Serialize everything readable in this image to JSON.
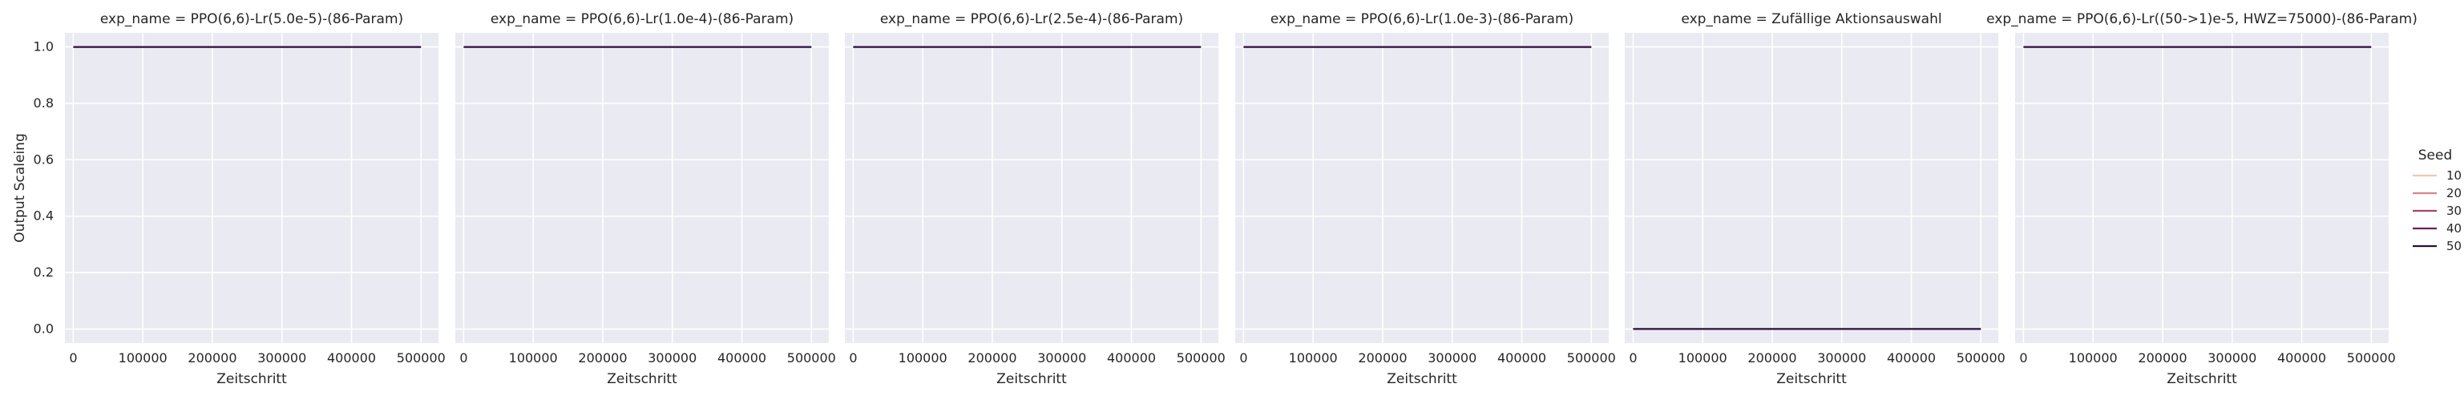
{
  "chart_data": {
    "type": "line",
    "facet_variable": "exp_name",
    "title_template": "exp_name = {name}",
    "xlabel": "Zeitschritt",
    "ylabel": "Output Scaleing",
    "xlim": [
      -12000,
      525000
    ],
    "ylim": [
      -0.05,
      1.05
    ],
    "xticks": [
      0,
      100000,
      200000,
      300000,
      400000,
      500000
    ],
    "xtick_labels": [
      "0",
      "100000",
      "200000",
      "300000",
      "400000",
      "500000"
    ],
    "yticks": [
      0.0,
      0.2,
      0.4,
      0.6,
      0.8,
      1.0
    ],
    "ytick_labels": [
      "0.0",
      "0.2",
      "0.4",
      "0.6",
      "0.8",
      "1.0"
    ],
    "grid": true,
    "legend": {
      "title": "Seed",
      "placement": "right",
      "entries": [
        {
          "label": "10",
          "color": "#f0c8b8"
        },
        {
          "label": "20",
          "color": "#d9838c"
        },
        {
          "label": "30",
          "color": "#a8426d"
        },
        {
          "label": "40",
          "color": "#6b1f5e"
        },
        {
          "label": "50",
          "color": "#2a0f3c"
        }
      ]
    },
    "panels": [
      {
        "name": "PPO(6,6)-Lr(5.0e-5)-(86-Param)",
        "series": [
          {
            "seed": "50",
            "x": [
              0,
              500000
            ],
            "y": [
              1.0,
              1.0
            ]
          }
        ]
      },
      {
        "name": "PPO(6,6)-Lr(1.0e-4)-(86-Param)",
        "series": [
          {
            "seed": "50",
            "x": [
              0,
              500000
            ],
            "y": [
              1.0,
              1.0
            ]
          }
        ]
      },
      {
        "name": "PPO(6,6)-Lr(2.5e-4)-(86-Param)",
        "series": [
          {
            "seed": "50",
            "x": [
              0,
              500000
            ],
            "y": [
              1.0,
              1.0
            ]
          }
        ]
      },
      {
        "name": "PPO(6,6)-Lr(1.0e-3)-(86-Param)",
        "series": [
          {
            "seed": "50",
            "x": [
              0,
              500000
            ],
            "y": [
              1.0,
              1.0
            ]
          }
        ]
      },
      {
        "name": "Zufällige Aktionsauswahl",
        "series": [
          {
            "seed": "50",
            "x": [
              0,
              500000
            ],
            "y": [
              0.0,
              0.0
            ]
          }
        ]
      },
      {
        "name": "PPO(6,6)-Lr((50->1)e-5, HWZ=75000)-(86-Param)",
        "series": [
          {
            "seed": "50",
            "x": [
              0,
              500000
            ],
            "y": [
              1.0,
              1.0
            ]
          }
        ]
      }
    ]
  }
}
